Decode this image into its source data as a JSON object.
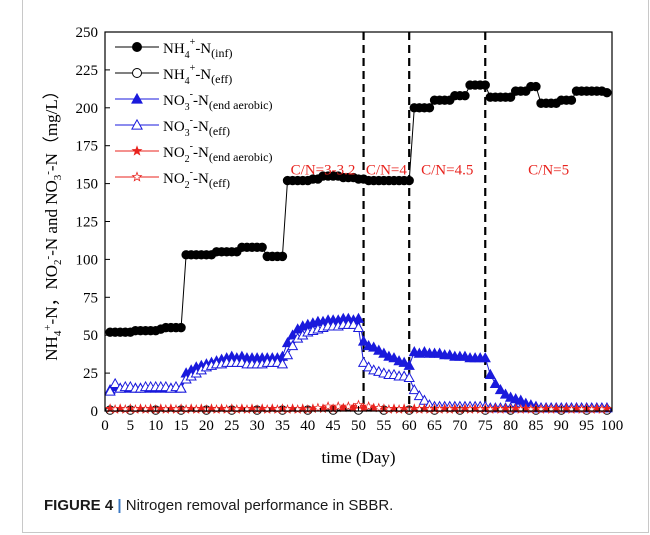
{
  "figure": {
    "label": "FIGURE 4",
    "separator": "|",
    "caption": "Nitrogen removal performance in SBBR."
  },
  "chart_data": {
    "type": "scatter",
    "title": "",
    "xlabel": "time (Day)",
    "ylabel": "NH4+-N，NO2−-N and NO3−-N（mg/L）",
    "ylabel_parts": [
      "NH",
      "4",
      "+",
      "-N，NO",
      "2",
      "-",
      "-N and NO",
      "3",
      "-",
      "-N（mg/L）"
    ],
    "xlim": [
      0,
      100
    ],
    "ylim": [
      0,
      250
    ],
    "xticks": [
      0,
      5,
      10,
      15,
      20,
      25,
      30,
      35,
      40,
      45,
      50,
      55,
      60,
      65,
      70,
      75,
      80,
      85,
      90,
      95,
      100
    ],
    "yticks": [
      0,
      25,
      50,
      75,
      100,
      125,
      150,
      175,
      200,
      225,
      250
    ],
    "legend_position": "top-left",
    "grid": false,
    "phase_dividers": [
      51,
      60,
      75
    ],
    "phase_labels": [
      {
        "text": "C/N=3-3.2",
        "x": 43
      },
      {
        "text": "C/N=4",
        "x": 55.5
      },
      {
        "text": "C/N=4.5",
        "x": 67.5
      },
      {
        "text": "C/N=5",
        "x": 87.5
      }
    ],
    "phase_label_y": 156,
    "phase_label_color": "#e8231e",
    "series": [
      {
        "name": "NH4+-N(inf)",
        "legend": {
          "main": "NH",
          "sub": "4",
          "sup": "+",
          "rest": "-N",
          "tag": "(inf)"
        },
        "color": "#000000",
        "marker": "circle",
        "filled": true,
        "x": [
          1,
          2,
          3,
          4,
          5,
          6,
          7,
          8,
          9,
          10,
          11,
          12,
          13,
          14,
          15,
          16,
          17,
          18,
          19,
          20,
          21,
          22,
          23,
          24,
          25,
          26,
          27,
          28,
          29,
          30,
          31,
          32,
          33,
          34,
          35,
          36,
          37,
          38,
          39,
          40,
          41,
          42,
          43,
          44,
          45,
          46,
          47,
          48,
          49,
          50,
          51,
          52,
          53,
          54,
          55,
          56,
          57,
          58,
          59,
          60,
          61,
          62,
          63,
          64,
          65,
          66,
          67,
          68,
          69,
          70,
          71,
          72,
          73,
          74,
          75,
          76,
          77,
          78,
          79,
          80,
          81,
          82,
          83,
          84,
          85,
          86,
          87,
          88,
          89,
          90,
          91,
          92,
          93,
          94,
          95,
          96,
          97,
          98,
          99
        ],
        "y": [
          52,
          52,
          52,
          52,
          52,
          53,
          53,
          53,
          53,
          53,
          54,
          55,
          55,
          55,
          55,
          103,
          103,
          103,
          103,
          103,
          103,
          105,
          105,
          105,
          105,
          105,
          108,
          108,
          108,
          108,
          108,
          102,
          102,
          102,
          102,
          152,
          152,
          152,
          152,
          152,
          153,
          153,
          155,
          155,
          155,
          155,
          154,
          154,
          154,
          153,
          153,
          152,
          152,
          152,
          152,
          152,
          152,
          152,
          152,
          152,
          200,
          200,
          200,
          200,
          205,
          205,
          205,
          205,
          208,
          208,
          208,
          215,
          215,
          215,
          215,
          207,
          207,
          207,
          207,
          207,
          211,
          211,
          211,
          214,
          214,
          203,
          203,
          203,
          203,
          205,
          205,
          205,
          211,
          211,
          211,
          211,
          211,
          211,
          210
        ]
      },
      {
        "name": "NH4+-N(eff)",
        "legend": {
          "main": "NH",
          "sub": "4",
          "sup": "+",
          "rest": "-N",
          "tag": "(eff)"
        },
        "color": "#000000",
        "marker": "circle",
        "filled": false,
        "x": [
          1,
          5,
          10,
          15,
          20,
          25,
          30,
          35,
          40,
          45,
          50,
          55,
          60,
          65,
          70,
          75,
          80,
          85,
          90,
          95,
          99
        ],
        "y": [
          0.6,
          0.6,
          0.6,
          0.6,
          0.6,
          0.6,
          0.6,
          0.6,
          0.6,
          0.6,
          0.6,
          0.6,
          0.6,
          0.6,
          0.6,
          0.6,
          0.6,
          0.6,
          0.6,
          0.6,
          0.6
        ]
      },
      {
        "name": "NO3−-N(end aerobic)",
        "legend": {
          "main": "NO",
          "sub": "3",
          "sup": "-",
          "rest": "-N",
          "tag": "(end aerobic)"
        },
        "color": "#1a1adc",
        "marker": "triangle",
        "filled": true,
        "x": [
          1,
          2,
          3,
          4,
          5,
          6,
          7,
          8,
          9,
          10,
          11,
          12,
          13,
          14,
          15,
          16,
          17,
          18,
          19,
          20,
          21,
          22,
          23,
          24,
          25,
          26,
          27,
          28,
          29,
          30,
          31,
          32,
          33,
          34,
          35,
          36,
          37,
          38,
          39,
          40,
          41,
          42,
          43,
          44,
          45,
          46,
          47,
          48,
          49,
          50,
          51,
          52,
          53,
          54,
          55,
          56,
          57,
          58,
          59,
          60,
          61,
          62,
          63,
          64,
          65,
          66,
          67,
          68,
          69,
          70,
          71,
          72,
          73,
          74,
          75,
          76,
          77,
          78,
          79,
          80,
          81,
          82,
          83,
          84,
          85,
          86,
          87,
          88,
          89,
          90,
          91,
          92,
          93,
          94,
          95,
          96,
          97,
          98,
          99
        ],
        "y": [
          14,
          16,
          15,
          15,
          15,
          15,
          15,
          15,
          15,
          15,
          15,
          15,
          15,
          15,
          15,
          25,
          27,
          29,
          30,
          31,
          32,
          33,
          34,
          35,
          36,
          35,
          36,
          35,
          35,
          35,
          35,
          35,
          35,
          35,
          36,
          45,
          50,
          54,
          56,
          57,
          58,
          59,
          59,
          60,
          60,
          60,
          61,
          61,
          60,
          61,
          46,
          43,
          42,
          40,
          38,
          36,
          35,
          33,
          32,
          30,
          39,
          38,
          39,
          38,
          38,
          38,
          37,
          37,
          36,
          36,
          36,
          35,
          35,
          35,
          35,
          24,
          18,
          14,
          11,
          9,
          8,
          7,
          5,
          4,
          3,
          2,
          2,
          2,
          2,
          2,
          2,
          2,
          2,
          2,
          2,
          2,
          2,
          2,
          2
        ]
      },
      {
        "name": "NO3−-N(eff)",
        "legend": {
          "main": "NO",
          "sub": "3",
          "sup": "-",
          "rest": "-N",
          "tag": "(eff)"
        },
        "color": "#1a1adc",
        "marker": "triangle",
        "filled": false,
        "x": [
          1,
          2,
          3,
          4,
          5,
          6,
          7,
          8,
          9,
          10,
          11,
          12,
          13,
          14,
          15,
          16,
          17,
          18,
          19,
          20,
          21,
          22,
          23,
          24,
          25,
          26,
          27,
          28,
          29,
          30,
          31,
          32,
          33,
          34,
          35,
          36,
          37,
          38,
          39,
          40,
          41,
          42,
          43,
          44,
          45,
          46,
          47,
          48,
          49,
          50,
          51,
          52,
          53,
          54,
          55,
          56,
          57,
          58,
          59,
          60,
          61,
          62,
          63,
          64,
          65,
          66,
          67,
          68,
          69,
          70,
          71,
          72,
          73,
          74,
          75,
          76,
          77,
          78,
          79,
          80,
          81,
          82,
          83,
          84,
          85,
          86,
          87,
          88,
          89,
          90,
          91,
          92,
          93,
          94,
          95,
          96,
          97,
          98,
          99
        ],
        "y": [
          13,
          18,
          15,
          16,
          16,
          15,
          15,
          16,
          16,
          16,
          16,
          16,
          15,
          16,
          15,
          21,
          23,
          25,
          27,
          29,
          30,
          31,
          31,
          32,
          32,
          32,
          32,
          31,
          31,
          31,
          31,
          32,
          32,
          32,
          31,
          37,
          43,
          48,
          50,
          52,
          53,
          54,
          55,
          56,
          56,
          56,
          57,
          57,
          57,
          55,
          32,
          29,
          27,
          26,
          25,
          24,
          24,
          23,
          23,
          22,
          14,
          10,
          7,
          4,
          3,
          3,
          3,
          3,
          3,
          3,
          3,
          3,
          3,
          3,
          3,
          2,
          2,
          2,
          2,
          2,
          2,
          2,
          2,
          2,
          2,
          2,
          2,
          2,
          2,
          2,
          2,
          2,
          2,
          2,
          2,
          2,
          2,
          2,
          2
        ]
      },
      {
        "name": "NO2−-N(end aerobic)",
        "legend": {
          "main": "NO",
          "sub": "2",
          "sup": "-",
          "rest": "-N",
          "tag": "(end aerobic)"
        },
        "color": "#e8231e",
        "marker": "star",
        "filled": true,
        "x": [
          1,
          3,
          5,
          7,
          9,
          11,
          13,
          15,
          17,
          19,
          21,
          23,
          25,
          27,
          29,
          31,
          33,
          35,
          37,
          39,
          41,
          43,
          45,
          47,
          49,
          51,
          53,
          55,
          57,
          59,
          61,
          63,
          65,
          67,
          69,
          71,
          73,
          75,
          77,
          79,
          81,
          83,
          85,
          87,
          89,
          91,
          93,
          95,
          97,
          99
        ],
        "y": [
          1.5,
          1.5,
          1.5,
          1.5,
          1.5,
          1.5,
          1.5,
          1.5,
          1.5,
          1.5,
          1.5,
          1.5,
          1.5,
          1.5,
          1.5,
          1.5,
          1.5,
          1.5,
          1.5,
          1.5,
          1.5,
          1.5,
          1.5,
          2,
          2,
          2,
          2,
          1.5,
          1.5,
          1.5,
          1.5,
          1.5,
          1.5,
          1.5,
          1.5,
          1.5,
          1.5,
          1.5,
          1.5,
          1.5,
          1.5,
          1.5,
          1.5,
          1.5,
          1.5,
          1.5,
          1.5,
          1.5,
          1.5,
          1.5
        ]
      },
      {
        "name": "NO2−-N(eff)",
        "legend": {
          "main": "NO",
          "sub": "2",
          "sup": "-",
          "rest": "-N",
          "tag": "(eff)"
        },
        "color": "#e8231e",
        "marker": "star",
        "filled": false,
        "x": [
          2,
          4,
          6,
          8,
          10,
          12,
          14,
          16,
          18,
          20,
          22,
          24,
          26,
          28,
          30,
          32,
          34,
          36,
          38,
          40,
          42,
          44,
          46,
          48,
          50,
          52,
          54,
          56,
          58,
          60,
          62,
          64,
          66,
          68,
          70,
          72,
          74,
          76,
          78,
          80,
          82,
          84,
          86,
          88,
          90,
          92,
          94,
          96,
          98
        ],
        "y": [
          1,
          1,
          1,
          1,
          1,
          1,
          1,
          1,
          1,
          1,
          1,
          1,
          1,
          1,
          1,
          1,
          1,
          1,
          1,
          1,
          2,
          3,
          3,
          3,
          4,
          3,
          2,
          1,
          1,
          1,
          1,
          1,
          1,
          1,
          1,
          1,
          1,
          1,
          1,
          1,
          1,
          1,
          1,
          1,
          1,
          1,
          1,
          1,
          1
        ]
      }
    ]
  }
}
